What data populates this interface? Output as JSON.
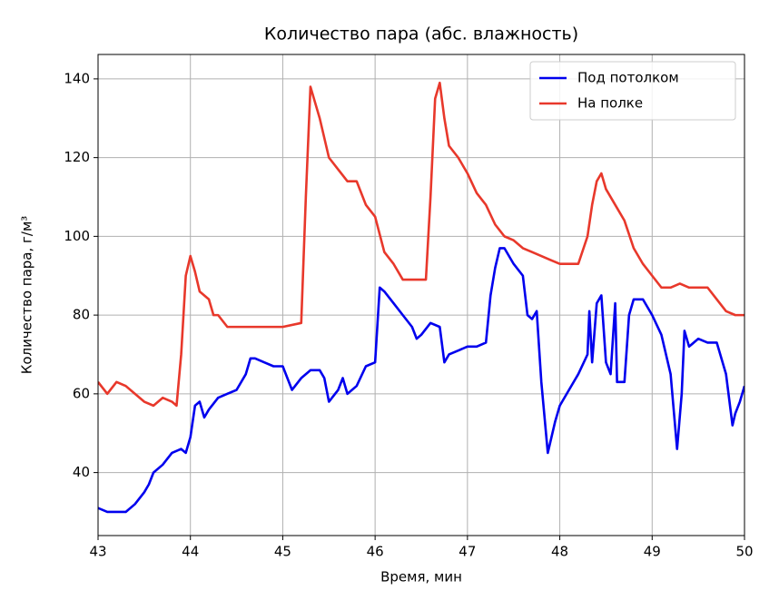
{
  "chart_data": {
    "type": "line",
    "title": "Количество пара (абс. влажность)",
    "xlabel": "Время, мин",
    "ylabel": "Количество пара, г/м³",
    "xlim": [
      43,
      50
    ],
    "xticks": [
      43,
      44,
      45,
      46,
      47,
      48,
      49,
      50
    ],
    "ylim": [
      24,
      146.2
    ],
    "yticks": [
      40,
      60,
      80,
      100,
      120,
      140
    ],
    "grid": true,
    "legend": "upper right",
    "series": [
      {
        "name": "Под потолком",
        "color": "#0000ee",
        "x": [
          43.0,
          43.1,
          43.2,
          43.3,
          43.4,
          43.5,
          43.55,
          43.6,
          43.7,
          43.8,
          43.9,
          43.95,
          44.0,
          44.05,
          44.1,
          44.15,
          44.2,
          44.3,
          44.4,
          44.5,
          44.6,
          44.65,
          44.7,
          44.8,
          44.9,
          45.0,
          45.1,
          45.2,
          45.3,
          45.4,
          45.45,
          45.5,
          45.6,
          45.65,
          45.7,
          45.8,
          45.9,
          46.0,
          46.05,
          46.1,
          46.2,
          46.3,
          46.4,
          46.45,
          46.5,
          46.6,
          46.7,
          46.75,
          46.8,
          46.9,
          47.0,
          47.1,
          47.2,
          47.25,
          47.3,
          47.35,
          47.4,
          47.5,
          47.6,
          47.65,
          47.7,
          47.75,
          47.8,
          47.87,
          47.95,
          48.0,
          48.1,
          48.2,
          48.3,
          48.32,
          48.35,
          48.4,
          48.45,
          48.5,
          48.55,
          48.6,
          48.62,
          48.7,
          48.75,
          48.8,
          48.9,
          49.0,
          49.1,
          49.2,
          49.27,
          49.32,
          49.35,
          49.4,
          49.5,
          49.6,
          49.7,
          49.8,
          49.87,
          49.9,
          49.95,
          50.0
        ],
        "values": [
          31,
          30,
          30,
          30,
          32,
          35,
          37,
          40,
          42,
          45,
          46,
          45,
          49,
          57,
          58,
          54,
          56,
          59,
          60,
          61,
          65,
          69,
          69,
          68,
          67,
          67,
          61,
          64,
          66,
          66,
          64,
          58,
          61,
          64,
          60,
          62,
          67,
          68,
          87,
          86,
          83,
          80,
          77,
          74,
          75,
          78,
          77,
          68,
          70,
          71,
          72,
          72,
          73,
          85,
          92,
          97,
          97,
          93,
          90,
          80,
          79,
          81,
          63,
          45,
          53,
          57,
          61,
          65,
          70,
          81,
          68,
          83,
          85,
          68,
          65,
          83,
          63,
          63,
          80,
          84,
          84,
          80,
          75,
          65,
          46,
          60,
          76,
          72,
          74,
          73,
          73,
          65,
          52,
          55,
          58,
          62
        ]
      },
      {
        "name": "На полке",
        "color": "#e8382b",
        "x": [
          43.0,
          43.1,
          43.2,
          43.3,
          43.4,
          43.5,
          43.6,
          43.7,
          43.8,
          43.85,
          43.9,
          43.95,
          44.0,
          44.05,
          44.1,
          44.2,
          44.25,
          44.3,
          44.4,
          44.6,
          44.8,
          45.0,
          45.2,
          45.25,
          45.3,
          45.4,
          45.5,
          45.6,
          45.7,
          45.8,
          45.9,
          46.0,
          46.1,
          46.2,
          46.3,
          46.4,
          46.55,
          46.6,
          46.65,
          46.7,
          46.75,
          46.8,
          46.9,
          47.0,
          47.1,
          47.2,
          47.3,
          47.4,
          47.5,
          47.6,
          47.7,
          47.8,
          47.9,
          48.0,
          48.2,
          48.3,
          48.35,
          48.4,
          48.45,
          48.5,
          48.6,
          48.7,
          48.8,
          48.9,
          49.0,
          49.1,
          49.2,
          49.3,
          49.4,
          49.6,
          49.7,
          49.8,
          49.9,
          50.0
        ],
        "values": [
          63,
          60,
          63,
          62,
          60,
          58,
          57,
          59,
          58,
          57,
          70,
          90,
          95,
          91,
          86,
          84,
          80,
          80,
          77,
          77,
          77,
          77,
          78,
          110,
          138,
          130,
          120,
          117,
          114,
          114,
          108,
          105,
          96,
          93,
          89,
          89,
          89,
          110,
          135,
          139,
          130,
          123,
          120,
          116,
          111,
          108,
          103,
          100,
          99,
          97,
          96,
          95,
          94,
          93,
          93,
          100,
          108,
          114,
          116,
          112,
          108,
          104,
          97,
          93,
          90,
          87,
          87,
          88,
          87,
          87,
          84,
          81,
          80,
          80
        ]
      }
    ]
  }
}
